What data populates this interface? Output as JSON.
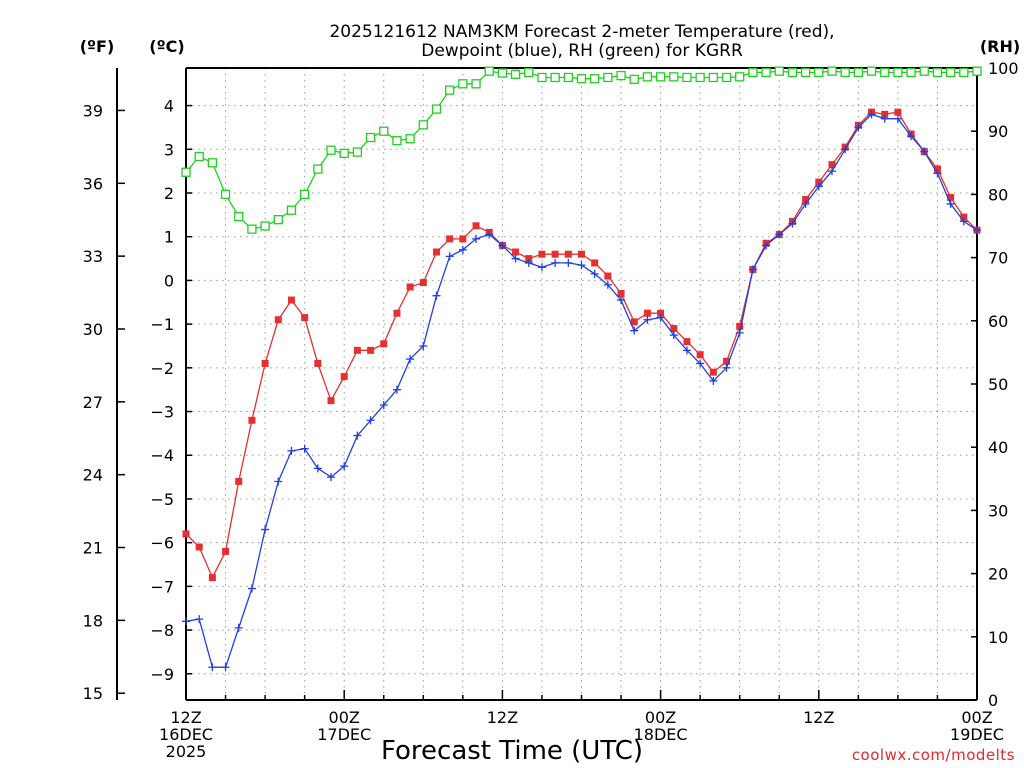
{
  "chart_data": {
    "type": "line",
    "title_lines": [
      "2025121612 NAM3KM Forecast 2-meter Temperature (red),",
      "Dewpoint (blue), RH (green) for KGRR"
    ],
    "xlabel": "Forecast Time (UTC)",
    "credit": "coolwx.com/modelts",
    "unit_labels": {
      "fahrenheit": "(ºF)",
      "celsius": "(ºC)",
      "rh": "(RH)"
    },
    "x_hours_range": [
      0,
      60
    ],
    "celsius_range": [
      -9.6,
      4.86
    ],
    "rh_range": [
      0,
      100
    ],
    "x_ticks": [
      {
        "hour": 0,
        "lines": [
          "12Z",
          "16DEC",
          "2025"
        ]
      },
      {
        "hour": 12,
        "lines": [
          "00Z",
          "17DEC"
        ]
      },
      {
        "hour": 24,
        "lines": [
          "12Z"
        ]
      },
      {
        "hour": 36,
        "lines": [
          "00Z",
          "18DEC"
        ]
      },
      {
        "hour": 48,
        "lines": [
          "12Z"
        ]
      },
      {
        "hour": 60,
        "lines": [
          "00Z",
          "19DEC"
        ]
      }
    ],
    "celsius_ticks": [
      -9,
      -8,
      -7,
      -6,
      -5,
      -4,
      -3,
      -2,
      -1,
      0,
      1,
      2,
      3,
      4
    ],
    "celsius_tick_labels": [
      "−9",
      "−8",
      "−7",
      "−6",
      "−5",
      "−4",
      "−3",
      "−2",
      "−1",
      "0",
      "1",
      "2",
      "3",
      "4"
    ],
    "fahrenheit_ticks": [
      15,
      18,
      21,
      24,
      27,
      30,
      33,
      36,
      39
    ],
    "rh_ticks": [
      0,
      10,
      20,
      30,
      40,
      50,
      60,
      70,
      80,
      90,
      100
    ],
    "colors": {
      "temperature": "#e63030",
      "dewpoint": "#2040e0",
      "rh": "#20d020",
      "grid": "#999999"
    },
    "series": [
      {
        "name": "Temperature",
        "axis": "celsius",
        "marker": "square",
        "values": [
          -5.8,
          -6.1,
          -6.8,
          -6.2,
          -4.6,
          -3.2,
          -1.9,
          -0.9,
          -0.45,
          -0.85,
          -1.9,
          -2.75,
          -2.2,
          -1.6,
          -1.6,
          -1.45,
          -0.75,
          -0.15,
          -0.05,
          0.65,
          0.95,
          0.95,
          1.25,
          1.1,
          0.8,
          0.65,
          0.5,
          0.6,
          0.6,
          0.6,
          0.6,
          0.4,
          0.1,
          -0.3,
          -0.95,
          -0.75,
          -0.75,
          -1.1,
          -1.4,
          -1.7,
          -2.1,
          -1.85,
          -1.05,
          0.25,
          0.85,
          1.05,
          1.35,
          1.85,
          2.25,
          2.65,
          3.05,
          3.55,
          3.85,
          3.8,
          3.85,
          3.35,
          2.95,
          2.55,
          1.9,
          1.45,
          1.15
        ]
      },
      {
        "name": "Dewpoint",
        "axis": "celsius",
        "marker": "plus",
        "values": [
          -7.8,
          -7.75,
          -8.85,
          -8.85,
          -7.95,
          -7.05,
          -5.7,
          -4.6,
          -3.9,
          -3.85,
          -4.3,
          -4.5,
          -4.25,
          -3.55,
          -3.2,
          -2.85,
          -2.5,
          -1.8,
          -1.5,
          -0.35,
          0.55,
          0.7,
          0.95,
          1.05,
          0.8,
          0.5,
          0.4,
          0.3,
          0.4,
          0.4,
          0.35,
          0.15,
          -0.1,
          -0.45,
          -1.15,
          -0.9,
          -0.85,
          -1.25,
          -1.6,
          -1.9,
          -2.3,
          -2.0,
          -1.2,
          0.25,
          0.8,
          1.05,
          1.3,
          1.75,
          2.15,
          2.5,
          3.0,
          3.5,
          3.8,
          3.7,
          3.7,
          3.3,
          2.95,
          2.45,
          1.75,
          1.35,
          1.15
        ]
      },
      {
        "name": "RH",
        "axis": "rh",
        "marker": "open-square",
        "values": [
          83.5,
          86,
          85,
          80,
          76.5,
          74.5,
          75,
          76,
          77.5,
          80,
          84,
          87,
          86.5,
          86.7,
          89,
          90,
          88.5,
          88.8,
          91,
          93.5,
          96.5,
          97.5,
          97.5,
          99.5,
          99.2,
          99,
          99.3,
          98.5,
          98.5,
          98.5,
          98.3,
          98.3,
          98.5,
          98.8,
          98.2,
          98.6,
          98.6,
          98.6,
          98.5,
          98.5,
          98.5,
          98.5,
          98.6,
          99.3,
          99.3,
          99.5,
          99.3,
          99.3,
          99.3,
          99.5,
          99.3,
          99.3,
          99.5,
          99.3,
          99.3,
          99.3,
          99.5,
          99.3,
          99.3,
          99.3,
          99.5
        ]
      }
    ]
  }
}
